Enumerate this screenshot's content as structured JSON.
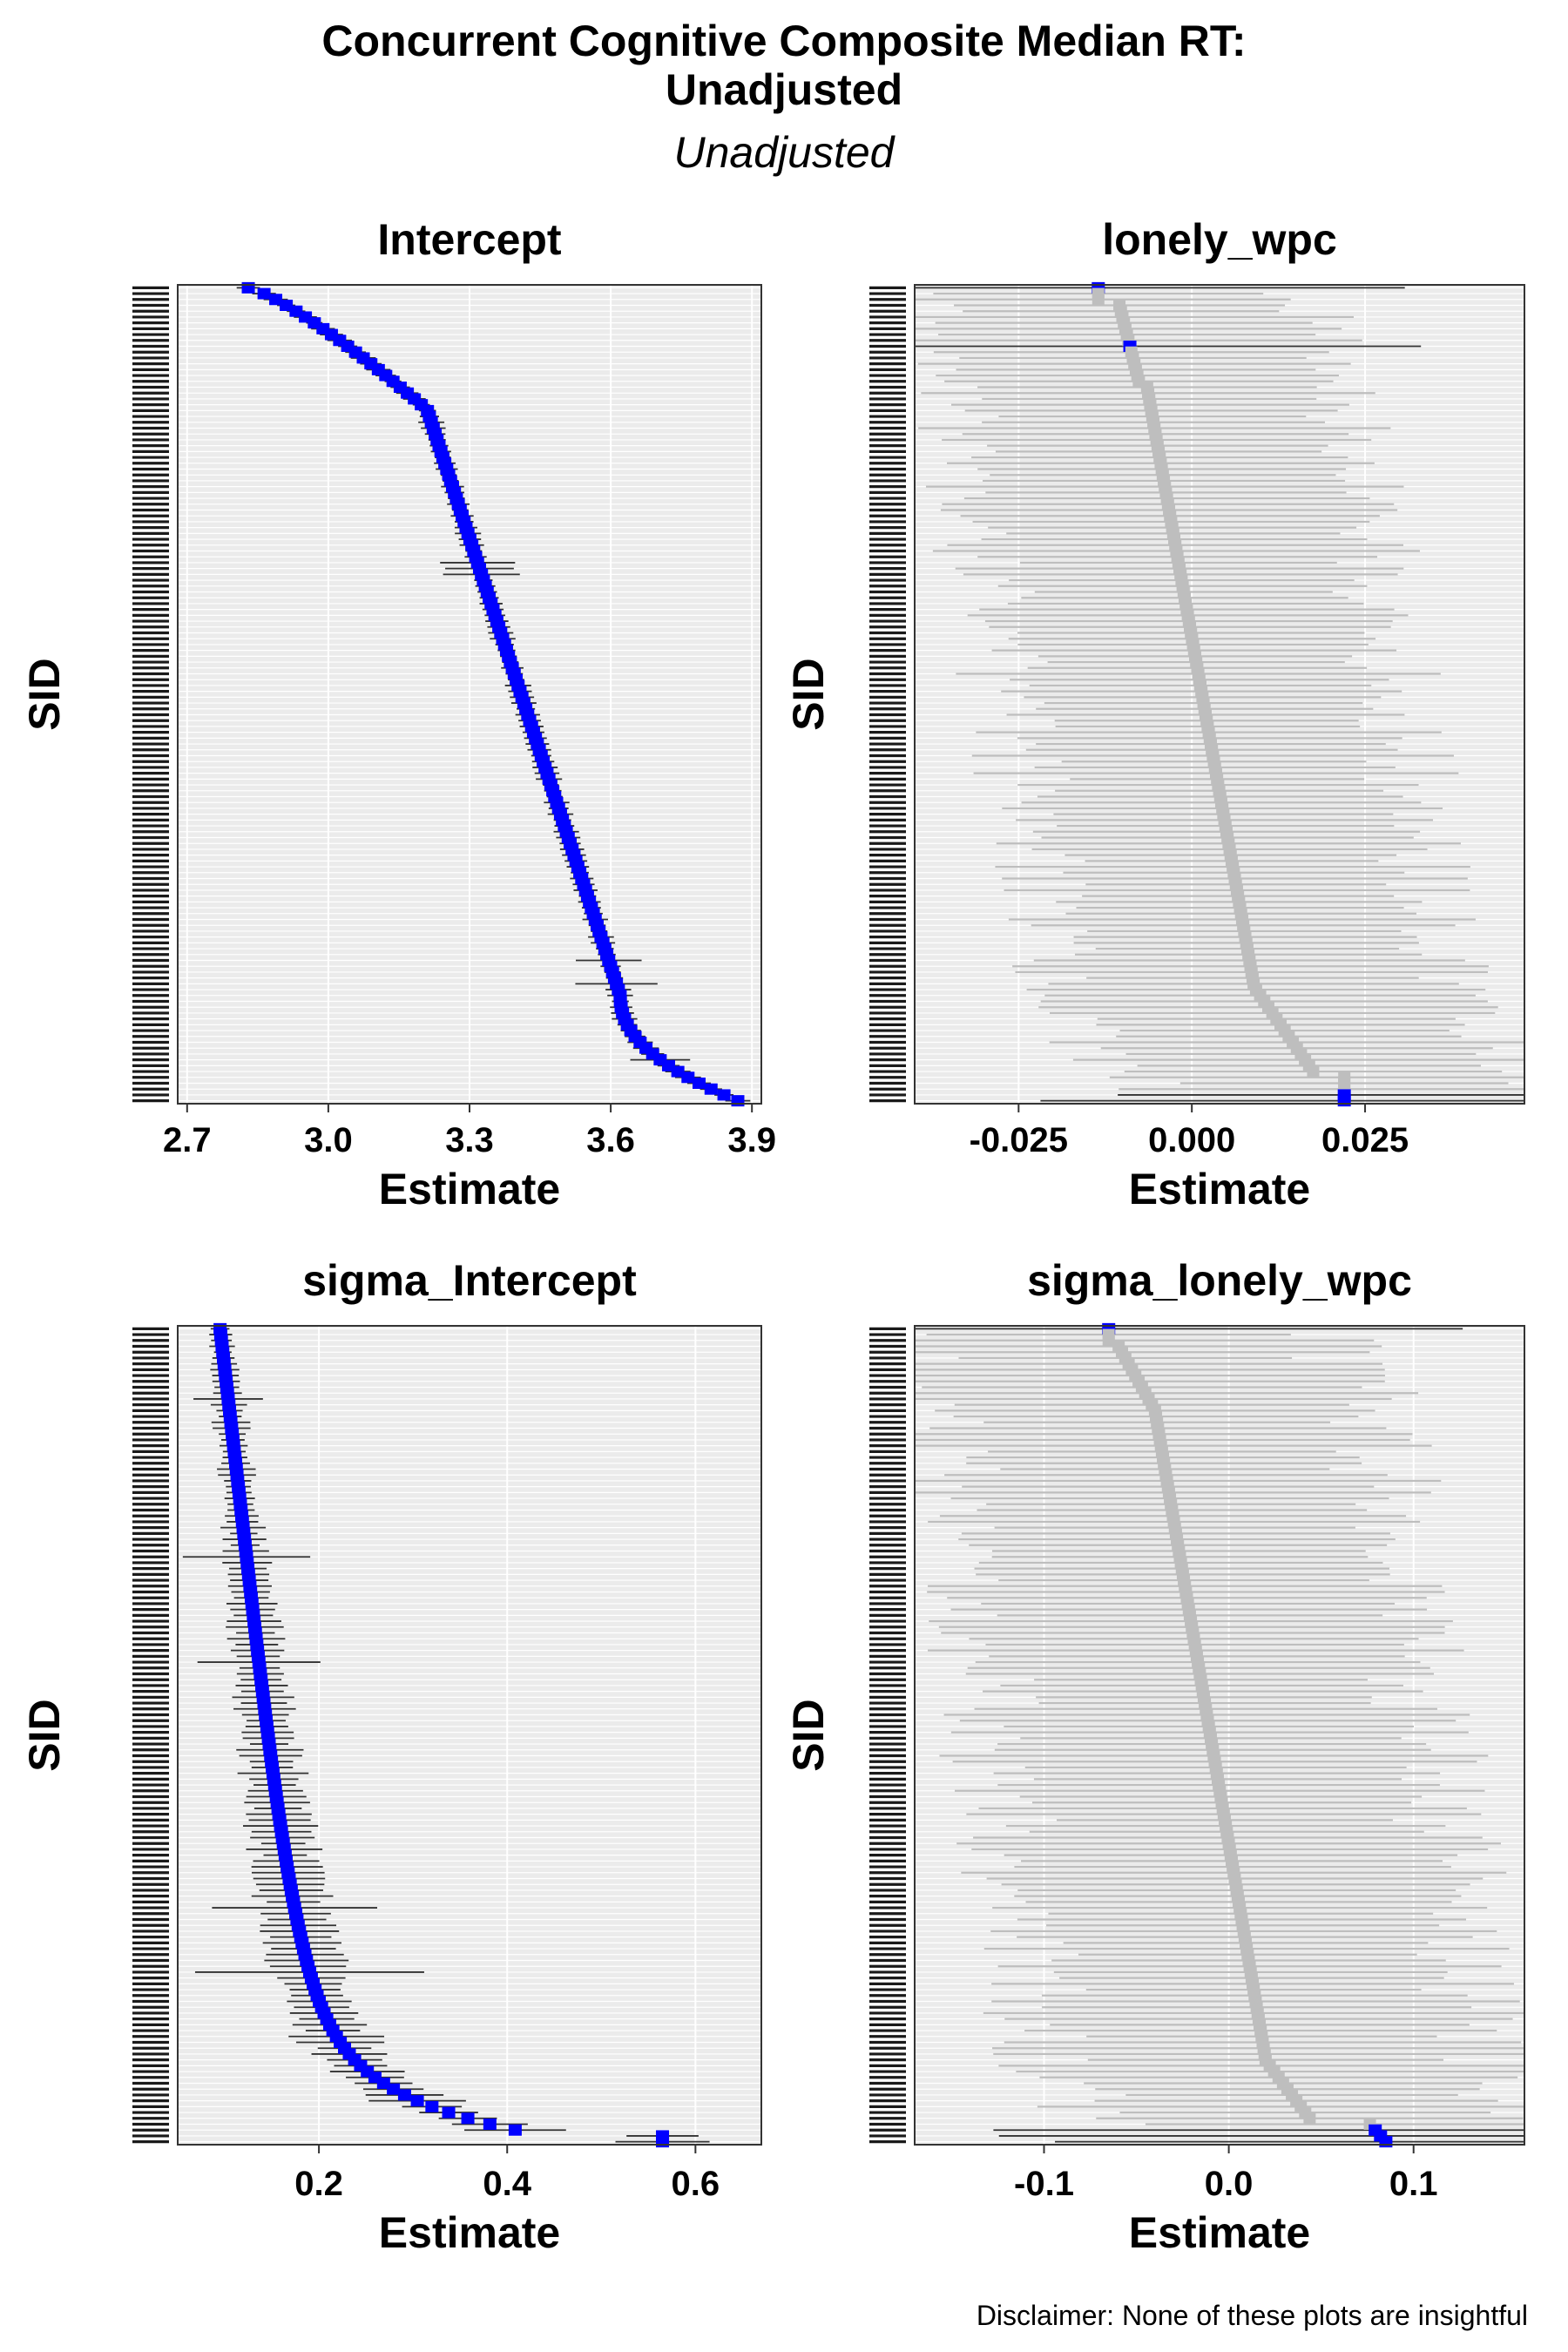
{
  "title_line1": "Concurrent Cognitive Composite Median RT:",
  "title_line2": "Unadjusted",
  "subtitle": "Unadjusted",
  "disclaimer": "Disclaimer: None of these plots are insightful",
  "colors": {
    "highlight": "#0000ff",
    "normal": "#bebebe",
    "panel_bg": "#ebebeb",
    "grid": "#ffffff",
    "error_highlight": "#333333",
    "error_normal": "#bebebe"
  },
  "chart_data": [
    {
      "type": "scatter",
      "title": "Intercept",
      "xlabel": "Estimate",
      "ylabel": "SID",
      "xlim": [
        2.68,
        3.92
      ],
      "xticks": [
        2.7,
        3.0,
        3.3,
        3.6,
        3.9
      ],
      "tick_labels": [
        "2.7",
        "3.0",
        "3.3",
        "3.6",
        "3.9"
      ],
      "n_points": 140,
      "estimate_range": [
        2.83,
        3.87
      ],
      "sid_top": "39254",
      "sid_bottom": "74672",
      "all_highlighted": true,
      "grid": true
    },
    {
      "type": "scatter",
      "title": "lonely_wpc",
      "xlabel": "Estimate",
      "ylabel": "SID",
      "xlim": [
        -0.04,
        0.048
      ],
      "xticks": [
        -0.025,
        0.0,
        0.025
      ],
      "tick_labels": [
        "-0.025",
        "0.000",
        "0.025"
      ],
      "n_points": 140,
      "estimate_range": [
        -0.0135,
        0.0225
      ],
      "sid_top": "6982",
      "sid_bottom": "77724",
      "highlighted_ranks": [
        0,
        10,
        138,
        139
      ],
      "grid": true
    },
    {
      "type": "scatter",
      "title": "sigma_Intercept",
      "xlabel": "Estimate",
      "ylabel": "SID",
      "xlim": [
        0.05,
        0.67
      ],
      "xticks": [
        0.2,
        0.4,
        0.6
      ],
      "tick_labels": [
        "0.2",
        "0.4",
        "0.6"
      ],
      "n_points": 140,
      "estimate_range": [
        0.095,
        0.565
      ],
      "sid_top": "39552",
      "sid_bottom": "23159",
      "all_highlighted": true,
      "grid": true
    },
    {
      "type": "scatter",
      "title": "sigma_lonely_wpc",
      "xlabel": "Estimate",
      "ylabel": "SID",
      "xlim": [
        -0.17,
        0.16
      ],
      "xticks": [
        -0.1,
        0.0,
        0.1
      ],
      "tick_labels": [
        "-0.1",
        "0.0",
        "0.1"
      ],
      "n_points": 140,
      "estimate_range": [
        -0.065,
        0.08
      ],
      "sid_top": "61044",
      "sid_bottom": "84235",
      "highlighted_ranks": [
        0,
        137,
        138,
        139
      ],
      "grid": true
    }
  ]
}
